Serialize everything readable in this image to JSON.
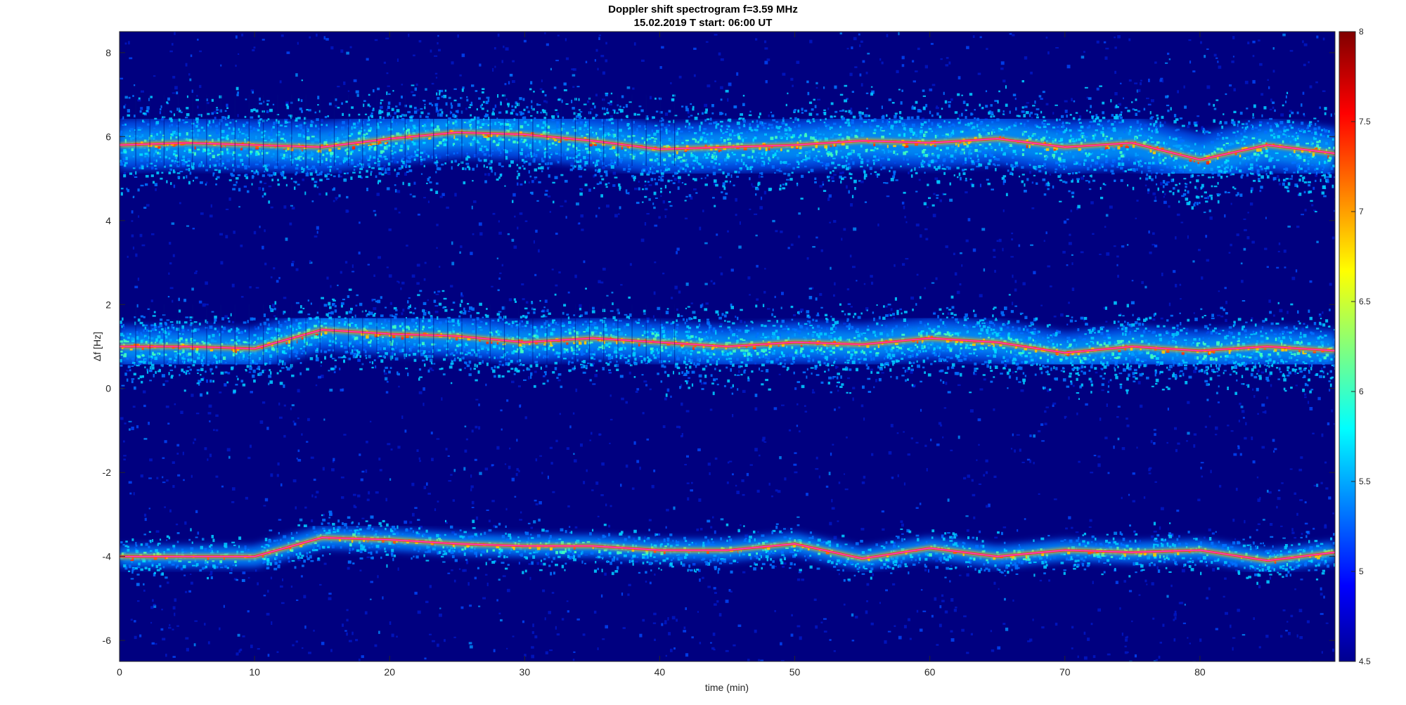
{
  "chart_data": {
    "type": "heatmap",
    "title": "Doppler shift spectrogram f=3.59 MHz",
    "subtitle": "15.02.2019    T start: 06:00 UT",
    "xlabel": "time (min)",
    "ylabel": "Δf [Hz]",
    "xlim": [
      0,
      90
    ],
    "ylim": [
      -6.5,
      8.5
    ],
    "x_ticks": [
      "0",
      "10",
      "20",
      "30",
      "40",
      "50",
      "60",
      "70",
      "80"
    ],
    "y_ticks": [
      "-6",
      "-4",
      "-2",
      "0",
      "2",
      "4",
      "6",
      "8"
    ],
    "colorbar": {
      "range": [
        4.5,
        8
      ],
      "ticks": [
        "4.5",
        "5",
        "5.5",
        "6",
        "6.5",
        "7",
        "7.5",
        "8"
      ],
      "colormap": "jet"
    },
    "background_color": "#000080",
    "series": [
      {
        "ridge": "upper",
        "x": [
          0,
          5,
          10,
          15,
          20,
          25,
          30,
          35,
          40,
          45,
          50,
          55,
          60,
          65,
          70,
          75,
          80,
          85,
          90
        ],
        "y": [
          5.8,
          5.85,
          5.8,
          5.75,
          5.95,
          6.1,
          6.05,
          5.9,
          5.7,
          5.75,
          5.8,
          5.9,
          5.85,
          5.95,
          5.75,
          5.85,
          5.45,
          5.8,
          5.6
        ]
      },
      {
        "ridge": "middle",
        "x": [
          0,
          5,
          10,
          15,
          20,
          25,
          30,
          35,
          40,
          45,
          50,
          55,
          60,
          65,
          70,
          75,
          80,
          85,
          90
        ],
        "y": [
          1.0,
          1.0,
          0.95,
          1.4,
          1.3,
          1.25,
          1.1,
          1.2,
          1.1,
          1.0,
          1.1,
          1.05,
          1.2,
          1.1,
          0.85,
          1.0,
          0.9,
          1.0,
          0.9
        ]
      },
      {
        "ridge": "lower",
        "x": [
          0,
          5,
          10,
          15,
          20,
          25,
          30,
          35,
          40,
          45,
          50,
          55,
          60,
          65,
          70,
          75,
          80,
          85,
          90
        ],
        "y": [
          -4.0,
          -4.0,
          -4.0,
          -3.55,
          -3.6,
          -3.7,
          -3.75,
          -3.75,
          -3.85,
          -3.85,
          -3.7,
          -4.05,
          -3.8,
          -4.0,
          -3.85,
          -3.9,
          -3.85,
          -4.1,
          -3.9
        ]
      }
    ]
  }
}
